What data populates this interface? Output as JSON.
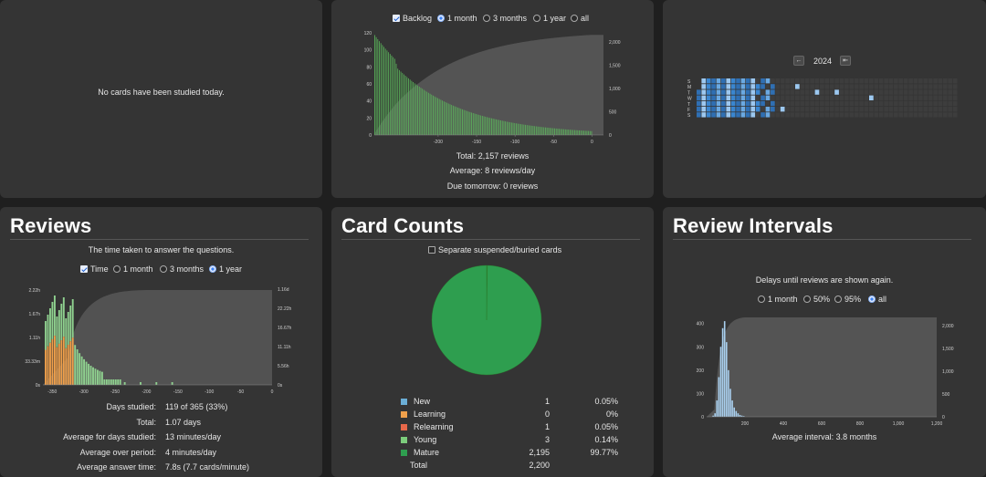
{
  "today": {
    "message": "No cards have been studied today."
  },
  "future_due": {
    "options": {
      "backlog_label": "Backlog",
      "backlog_checked": true,
      "range": [
        "1 month",
        "3 months",
        "1 year",
        "all"
      ],
      "selected": "1 month"
    },
    "stats": [
      "Total: 2,157 reviews",
      "Average: 8 reviews/day",
      "Due tomorrow: 0 reviews"
    ],
    "chart_data": {
      "type": "bar",
      "x_ticks": [
        -200,
        -150,
        -100,
        -50,
        0
      ],
      "y_ticks": [
        0,
        20,
        40,
        60,
        80,
        100,
        120
      ],
      "y2_ticks": [
        "0",
        "500",
        "1,000",
        "1,500",
        "2,000"
      ],
      "ylim": [
        0,
        120
      ],
      "y2lim": [
        0,
        2200
      ],
      "xlim": [
        -283,
        15
      ],
      "bar_color": "#5cb85c",
      "cumulative_color": "#5a5a5a"
    }
  },
  "calendar": {
    "year": "2024",
    "prev": "←",
    "next": "⇤",
    "day_labels": [
      "S",
      "M",
      "T",
      "W",
      "T",
      "F",
      "S"
    ]
  },
  "reviews": {
    "title": "Reviews",
    "subtitle": "The time taken to answer the questions.",
    "options": {
      "time_label": "Time",
      "time_checked": true,
      "range": [
        "1 month",
        "3 months",
        "1 year"
      ],
      "selected": "1 year"
    },
    "stats": [
      {
        "label": "Days studied:",
        "value": "119 of 365 (33%)"
      },
      {
        "label": "Total:",
        "value": "1.07 days"
      },
      {
        "label": "Average for days studied:",
        "value": "13 minutes/day"
      },
      {
        "label": "Average over period:",
        "value": "4 minutes/day"
      },
      {
        "label": "Average answer time:",
        "value": "7.8s (7.7 cards/minute)"
      }
    ],
    "chart_data": {
      "type": "bar",
      "x_ticks": [
        -350,
        -300,
        -250,
        -200,
        -150,
        -100,
        -50,
        0
      ],
      "y_ticks": [
        "0s",
        "33.33m",
        "1.11h",
        "1.67h",
        "2.22h"
      ],
      "y2_ticks": [
        "0s",
        "5.56h",
        "11.11h",
        "16.67h",
        "22.22h",
        "1.16d"
      ],
      "xlim": [
        -365,
        0
      ],
      "colors": {
        "learning": "#f0a04b",
        "young": "#8fd18f",
        "mature": "#3c9a3c"
      }
    }
  },
  "card_counts": {
    "title": "Card Counts",
    "separate_label": "Separate suspended/buried cards",
    "separate_checked": false,
    "chart_data": {
      "type": "pie",
      "labels": [
        "New",
        "Learning",
        "Relearning",
        "Young",
        "Mature"
      ],
      "values": [
        1,
        0,
        1,
        3,
        2195
      ],
      "percents": [
        "0.05%",
        "0%",
        "0.05%",
        "0.14%",
        "99.77%"
      ],
      "colors": [
        "#6baed6",
        "#f0a04b",
        "#e8684a",
        "#7ccc7c",
        "#2e9e4f"
      ]
    },
    "rows": [
      {
        "label": "New",
        "count": "1",
        "pct": "0.05%",
        "color": "#6baed6"
      },
      {
        "label": "Learning",
        "count": "0",
        "pct": "0%",
        "color": "#f0a04b"
      },
      {
        "label": "Relearning",
        "count": "1",
        "pct": "0.05%",
        "color": "#e8684a"
      },
      {
        "label": "Young",
        "count": "3",
        "pct": "0.14%",
        "color": "#7ccc7c"
      },
      {
        "label": "Mature",
        "count": "2,195",
        "pct": "99.77%",
        "color": "#2e9e4f"
      }
    ],
    "total_label": "Total",
    "total_value": "2,200"
  },
  "intervals": {
    "title": "Review Intervals",
    "subtitle": "Delays until reviews are shown again.",
    "options": {
      "range": [
        "1 month",
        "50%",
        "95%",
        "all"
      ],
      "selected": "all"
    },
    "stat": "Average interval: 3.8 months",
    "chart_data": {
      "type": "bar",
      "x_ticks": [
        200,
        400,
        600,
        800,
        1000,
        1200
      ],
      "x_tick_labels": [
        "200",
        "400",
        "600",
        "800",
        "1,000",
        "1,200"
      ],
      "y_ticks": [
        0,
        100,
        200,
        300,
        400
      ],
      "y2_ticks": [
        "0",
        "500",
        "1,000",
        "1,500",
        "2,000"
      ],
      "xlim": [
        0,
        1200
      ],
      "ylim": [
        0,
        430
      ],
      "bar_color": "#a9cfee"
    }
  }
}
